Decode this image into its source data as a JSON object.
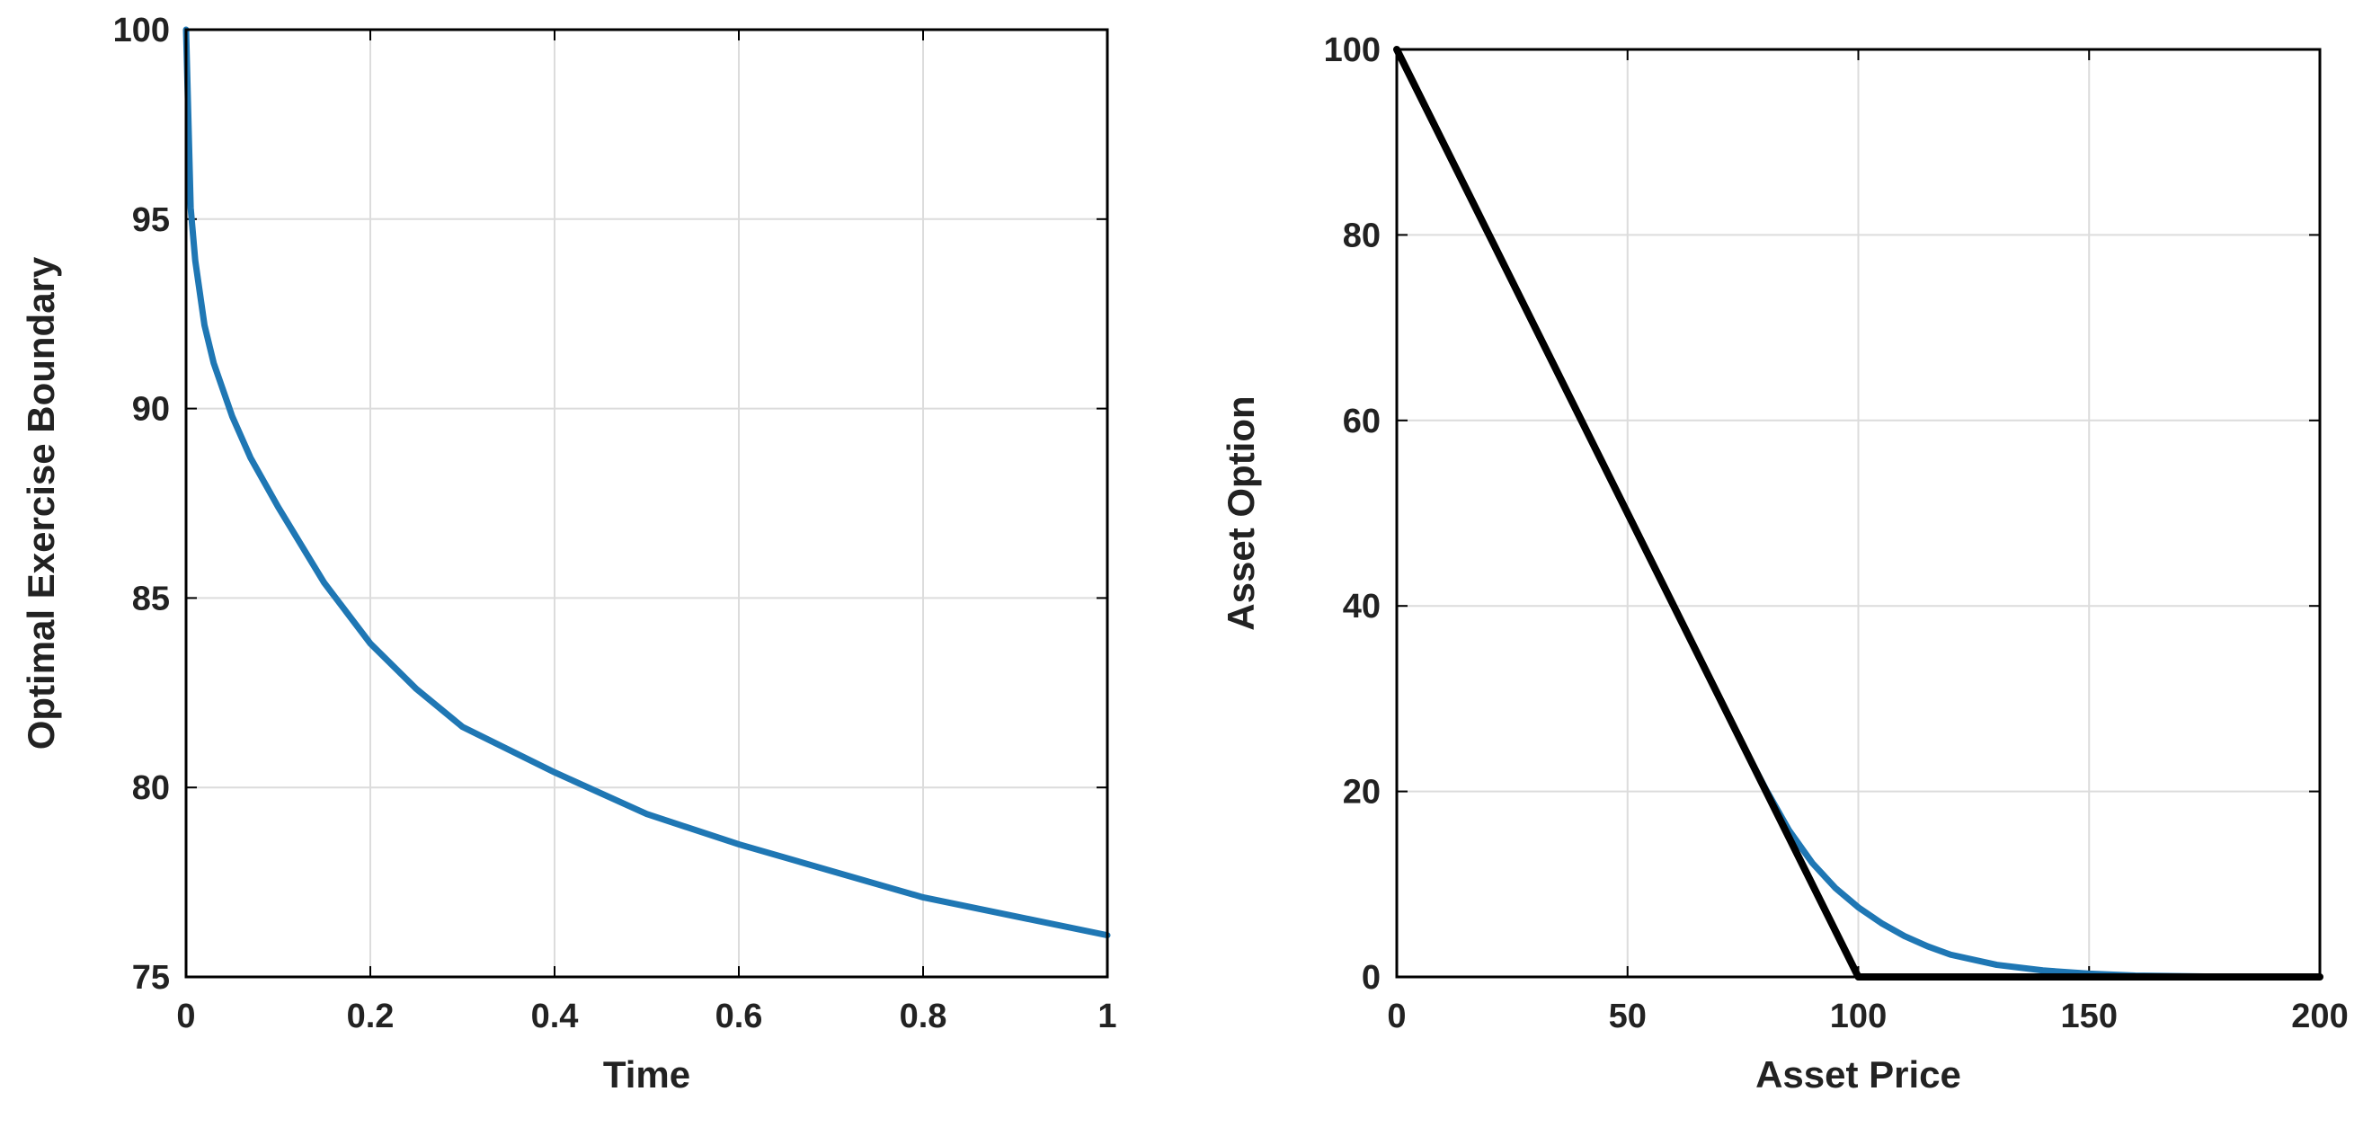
{
  "chart_data": [
    {
      "type": "line",
      "xlabel": "Time",
      "ylabel": "Optimal Exercise Boundary",
      "xlim": [
        0,
        1
      ],
      "ylim": [
        75,
        100
      ],
      "xticks": [
        0,
        0.2,
        0.4,
        0.6,
        0.8,
        1
      ],
      "xtick_labels": [
        "0",
        "0.2",
        "0.4",
        "0.6",
        "0.8",
        "1"
      ],
      "yticks": [
        75,
        80,
        85,
        90,
        95,
        100
      ],
      "ytick_labels": [
        "75",
        "80",
        "85",
        "90",
        "95",
        "100"
      ],
      "grid": true,
      "series": [
        {
          "color": "#1f77b4",
          "x": [
            0.0,
            0.005,
            0.01,
            0.02,
            0.03,
            0.05,
            0.07,
            0.1,
            0.15,
            0.2,
            0.25,
            0.3,
            0.4,
            0.5,
            0.6,
            0.7,
            0.8,
            0.9,
            1.0
          ],
          "y": [
            100,
            95.3,
            93.9,
            92.2,
            91.2,
            89.8,
            88.7,
            87.4,
            85.4,
            83.8,
            82.6,
            81.6,
            80.4,
            79.3,
            78.5,
            77.8,
            77.1,
            76.6,
            76.1
          ]
        }
      ]
    },
    {
      "type": "line",
      "xlabel": "Asset Price",
      "ylabel": "Asset Option",
      "xlim": [
        0,
        200
      ],
      "ylim": [
        0,
        100
      ],
      "xticks": [
        0,
        50,
        100,
        150,
        200
      ],
      "xtick_labels": [
        "0",
        "50",
        "100",
        "150",
        "200"
      ],
      "yticks": [
        0,
        20,
        40,
        60,
        80,
        100
      ],
      "ytick_labels": [
        "0",
        "20",
        "40",
        "60",
        "80",
        "100"
      ],
      "grid": true,
      "series": [
        {
          "color": "#1f77b4",
          "x": [
            0,
            50,
            76,
            80,
            85,
            90,
            95,
            100,
            105,
            110,
            115,
            120,
            130,
            140,
            150,
            160,
            175,
            200
          ],
          "y": [
            100,
            50,
            24,
            20.2,
            15.8,
            12.3,
            9.6,
            7.5,
            5.8,
            4.4,
            3.3,
            2.4,
            1.3,
            0.7,
            0.35,
            0.15,
            0.05,
            0.0
          ]
        },
        {
          "color": "#000000",
          "x": [
            0,
            100,
            200
          ],
          "y": [
            100,
            0,
            0
          ]
        }
      ]
    }
  ]
}
